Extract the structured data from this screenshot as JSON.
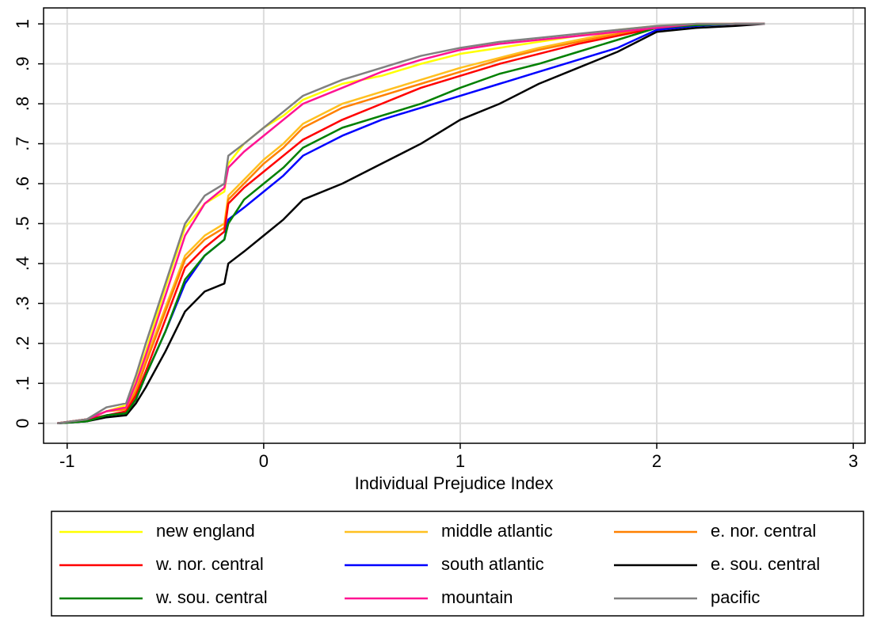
{
  "chart_data": {
    "type": "line",
    "x_label": "Individual Prejudice Index",
    "xlim": [
      -1.12,
      3.06
    ],
    "ylim": [
      -0.05,
      1.04
    ],
    "xticks": [
      -1,
      0,
      1,
      2,
      3
    ],
    "yticks": [
      0,
      {
        "value": 0.1,
        "label": ".1"
      },
      {
        "value": 0.2,
        "label": ".2"
      },
      {
        "value": 0.3,
        "label": ".3"
      },
      {
        "value": 0.4,
        "label": ".4"
      },
      {
        "value": 0.5,
        "label": ".5"
      },
      {
        "value": 0.6,
        "label": ".6"
      },
      {
        "value": 0.7,
        "label": ".7"
      },
      {
        "value": 0.8,
        "label": ".8"
      },
      {
        "value": 0.9,
        "label": ".9"
      },
      1
    ],
    "grid": true,
    "legend": "bottom",
    "x": [
      -1.05,
      -0.9,
      -0.8,
      -0.7,
      -0.65,
      -0.6,
      -0.5,
      -0.4,
      -0.3,
      -0.2,
      -0.18,
      -0.1,
      0,
      0.1,
      0.2,
      0.4,
      0.6,
      0.8,
      1.0,
      1.2,
      1.4,
      1.6,
      1.8,
      2.0,
      2.2,
      2.4,
      2.55
    ],
    "series": [
      {
        "name": "new england",
        "color": "#ffff00",
        "values": [
          0,
          0.01,
          0.03,
          0.045,
          0.11,
          0.18,
          0.34,
          0.49,
          0.55,
          0.58,
          0.65,
          0.7,
          0.74,
          0.77,
          0.81,
          0.85,
          0.87,
          0.9,
          0.925,
          0.94,
          0.955,
          0.97,
          0.985,
          0.995,
          1,
          1,
          1
        ]
      },
      {
        "name": "middle atlantic",
        "color": "#ffc020",
        "values": [
          0,
          0.01,
          0.03,
          0.04,
          0.09,
          0.16,
          0.29,
          0.42,
          0.47,
          0.5,
          0.57,
          0.61,
          0.66,
          0.7,
          0.75,
          0.8,
          0.83,
          0.86,
          0.89,
          0.915,
          0.94,
          0.96,
          0.98,
          0.99,
          1,
          1,
          1
        ]
      },
      {
        "name": "e. nor. central",
        "color": "#ff8000",
        "values": [
          0,
          0.01,
          0.03,
          0.035,
          0.08,
          0.15,
          0.28,
          0.41,
          0.46,
          0.49,
          0.56,
          0.6,
          0.65,
          0.69,
          0.74,
          0.79,
          0.82,
          0.85,
          0.88,
          0.91,
          0.935,
          0.955,
          0.975,
          0.99,
          0.998,
          1,
          1
        ]
      },
      {
        "name": "w. nor. central",
        "color": "#ff0000",
        "values": [
          0,
          0.01,
          0.02,
          0.03,
          0.07,
          0.13,
          0.26,
          0.39,
          0.44,
          0.48,
          0.55,
          0.59,
          0.63,
          0.67,
          0.71,
          0.76,
          0.8,
          0.84,
          0.87,
          0.9,
          0.925,
          0.95,
          0.97,
          0.99,
          0.998,
          1,
          1
        ]
      },
      {
        "name": "south atlantic",
        "color": "#0000ff",
        "values": [
          0,
          0.005,
          0.02,
          0.025,
          0.06,
          0.12,
          0.23,
          0.35,
          0.42,
          0.46,
          0.51,
          0.54,
          0.58,
          0.62,
          0.67,
          0.72,
          0.76,
          0.79,
          0.82,
          0.85,
          0.88,
          0.91,
          0.94,
          0.985,
          0.995,
          1,
          1
        ]
      },
      {
        "name": "e. sou. central",
        "color": "#000000",
        "values": [
          0,
          0.005,
          0.015,
          0.02,
          0.05,
          0.09,
          0.18,
          0.28,
          0.33,
          0.35,
          0.4,
          0.43,
          0.47,
          0.51,
          0.56,
          0.6,
          0.65,
          0.7,
          0.76,
          0.8,
          0.85,
          0.89,
          0.93,
          0.98,
          0.99,
          0.995,
          1
        ]
      },
      {
        "name": "w. sou. central",
        "color": "#008000",
        "values": [
          0,
          0.005,
          0.02,
          0.025,
          0.06,
          0.12,
          0.23,
          0.36,
          0.42,
          0.46,
          0.5,
          0.56,
          0.6,
          0.64,
          0.69,
          0.74,
          0.77,
          0.8,
          0.84,
          0.875,
          0.9,
          0.93,
          0.96,
          0.99,
          0.997,
          1,
          1
        ]
      },
      {
        "name": "mountain",
        "color": "#ff1493",
        "values": [
          0,
          0.01,
          0.03,
          0.04,
          0.1,
          0.17,
          0.32,
          0.47,
          0.55,
          0.59,
          0.64,
          0.68,
          0.72,
          0.76,
          0.8,
          0.84,
          0.88,
          0.91,
          0.935,
          0.95,
          0.96,
          0.97,
          0.98,
          0.99,
          1,
          1,
          1
        ]
      },
      {
        "name": "pacific",
        "color": "#808080",
        "values": [
          0,
          0.01,
          0.04,
          0.05,
          0.12,
          0.2,
          0.35,
          0.5,
          0.57,
          0.6,
          0.67,
          0.7,
          0.74,
          0.78,
          0.82,
          0.86,
          0.89,
          0.92,
          0.94,
          0.955,
          0.965,
          0.975,
          0.985,
          0.995,
          1,
          1,
          1
        ]
      }
    ]
  }
}
